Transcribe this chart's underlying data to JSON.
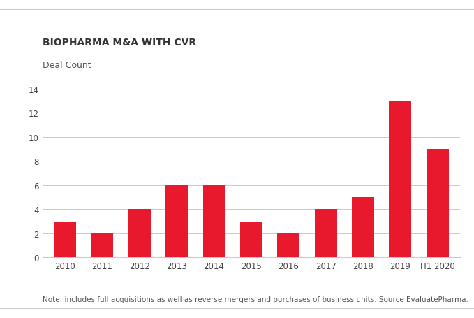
{
  "title": "BIOPHARMA M&A WITH CVR",
  "subtitle": "Deal Count",
  "categories": [
    "2010",
    "2011",
    "2012",
    "2013",
    "2014",
    "2015",
    "2016",
    "2017",
    "2018",
    "2019",
    "H1 2020"
  ],
  "values": [
    3,
    2,
    4,
    6,
    6,
    3,
    2,
    4,
    5,
    13,
    9
  ],
  "bar_color": "#E8192C",
  "ylim": [
    0,
    14
  ],
  "yticks": [
    0,
    2,
    4,
    6,
    8,
    10,
    12,
    14
  ],
  "note": "Note: includes full acquisitions as well as reverse mergers and purchases of business units. Source EvaluatePharma.",
  "background_color": "#ffffff",
  "grid_color": "#cccccc",
  "title_fontsize": 10,
  "subtitle_fontsize": 9,
  "tick_fontsize": 8.5,
  "note_fontsize": 7.5
}
